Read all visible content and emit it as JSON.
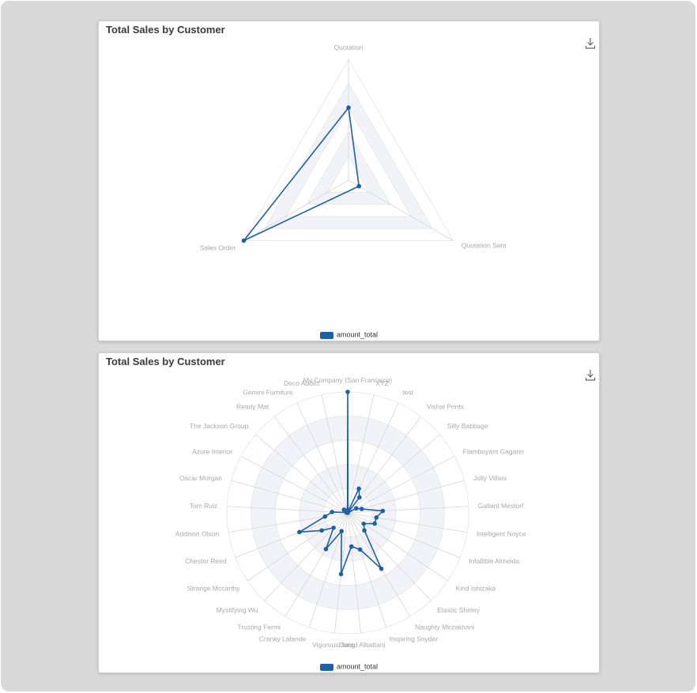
{
  "colors": {
    "series": "#1f5fa6",
    "axis_line": "#d6d6d6",
    "label": "#a9a9a9",
    "band_fill": "#f2f3f9"
  },
  "icons": {
    "download": "download-icon"
  },
  "charts": [
    {
      "title": "Total Sales by Customer",
      "legend": "amount_total"
    },
    {
      "title": "Total Sales by Customer",
      "legend": "amount_total"
    }
  ],
  "chart_data": [
    {
      "type": "radar",
      "title": "Total Sales by Customer",
      "categories": [
        "Quotation",
        "Quotation Sent",
        "Sales Order"
      ],
      "series": [
        {
          "name": "amount_total",
          "values": [
            0.6,
            0.1,
            1.0
          ]
        }
      ],
      "rmax": 1.0,
      "legend": "bottom"
    },
    {
      "type": "radar",
      "title": "Total Sales by Customer",
      "categories": [
        "My Company (San Francisco)",
        "XYZ",
        "test",
        "Vishal Prints",
        "Silly Babbage",
        "Flamboyant Gagarin",
        "Jolly Villani",
        "Gallant Mestorf",
        "Intelligent Noyce",
        "Infallible Almeida",
        "Kind Ishizaka",
        "Elastic Shirley",
        "Naughty Mirzakhani",
        "Inspiring Snyder",
        "Elated Albattani",
        "Vigorous Jang",
        "Cranky Lalande",
        "Trusting Fermi",
        "Mystifying Wu",
        "Strange Mccarthy",
        "Chester Reed",
        "Addison Olson",
        "Tom Ruiz",
        "Oscar Morgan",
        "Azure Interior",
        "The Jackson Group",
        "Ready Mat",
        "Gemini Furniture",
        "Deco Addict"
      ],
      "series": [
        {
          "name": "amount_total",
          "values": [
            1.0,
            0.01,
            0.22,
            0.16,
            0.0,
            0.08,
            0.12,
            0.29,
            0.24,
            0.24,
            0.16,
            0.2,
            0.54,
            0.32,
            0.28,
            0.51,
            0.16,
            0.35,
            0.17,
            0.26,
            0.43,
            0.19,
            0.13,
            0.01,
            0.01,
            0.04,
            0.01,
            0.02,
            0.01
          ]
        }
      ],
      "rmax": 1.0,
      "legend": "bottom"
    }
  ]
}
